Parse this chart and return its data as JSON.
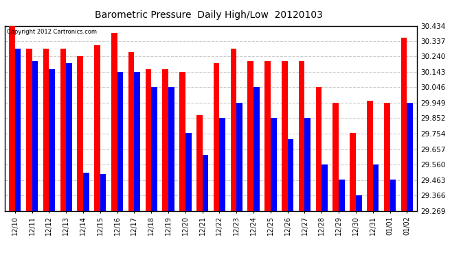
{
  "title": "Barometric Pressure  Daily High/Low  20120103",
  "copyright": "Copyright 2012 Cartronics.com",
  "categories": [
    "12/10",
    "12/11",
    "12/12",
    "12/13",
    "12/14",
    "12/15",
    "12/16",
    "12/17",
    "12/18",
    "12/19",
    "12/20",
    "12/21",
    "12/22",
    "12/23",
    "12/24",
    "12/25",
    "12/26",
    "12/27",
    "12/28",
    "12/29",
    "12/30",
    "12/31",
    "01/01",
    "01/02"
  ],
  "highs": [
    30.434,
    30.29,
    30.29,
    30.29,
    30.24,
    30.31,
    30.39,
    30.27,
    30.16,
    30.16,
    30.143,
    29.87,
    30.2,
    30.29,
    30.21,
    30.21,
    30.21,
    30.21,
    30.046,
    29.95,
    29.76,
    29.96,
    29.95,
    30.36
  ],
  "lows": [
    30.29,
    30.21,
    30.16,
    30.2,
    29.51,
    29.5,
    30.143,
    30.143,
    30.046,
    30.046,
    29.76,
    29.62,
    29.852,
    29.95,
    30.046,
    29.852,
    29.72,
    29.852,
    29.56,
    29.464,
    29.366,
    29.56,
    29.464,
    29.95
  ],
  "high_color": "#FF0000",
  "low_color": "#0000FF",
  "background_color": "#FFFFFF",
  "grid_color": "#CCCCCC",
  "ymin": 29.269,
  "ymax": 30.434,
  "yticks": [
    29.269,
    29.366,
    29.463,
    29.56,
    29.657,
    29.754,
    29.852,
    29.949,
    30.046,
    30.143,
    30.24,
    30.337,
    30.434
  ]
}
